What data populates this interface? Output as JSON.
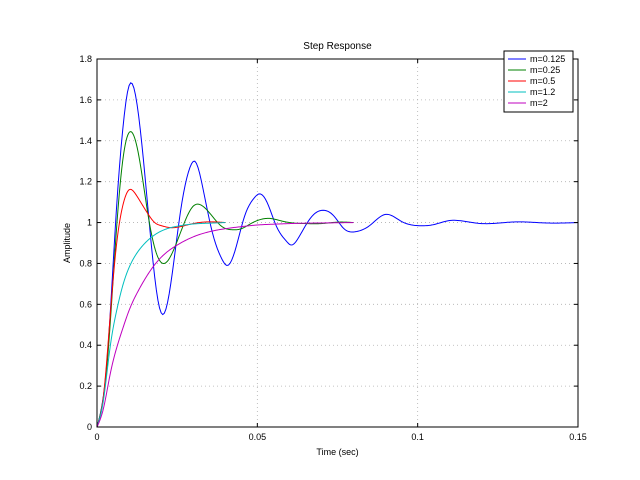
{
  "chart_data": {
    "type": "line",
    "title": "Step Response",
    "xlabel": "Time (sec)",
    "ylabel": "Amplitude",
    "xlim": [
      0,
      0.15
    ],
    "ylim": [
      0,
      1.8
    ],
    "xticks": [
      0,
      0.05,
      0.1,
      0.15
    ],
    "xtick_labels": [
      "0",
      "0.05",
      "0.1",
      "0.15"
    ],
    "yticks": [
      0,
      0.2,
      0.4,
      0.6,
      0.8,
      1,
      1.2,
      1.4,
      1.6,
      1.8
    ],
    "ytick_labels": [
      "0",
      "0.2",
      "0.4",
      "0.6",
      "0.8",
      "1",
      "1.2",
      "1.4",
      "1.6",
      "1.8"
    ],
    "grid": true,
    "legend_position": "top-right",
    "series": [
      {
        "name": "m=0.125",
        "color": "#0000ff",
        "t_end": 0.15,
        "x": [
          0,
          0.003,
          0.006,
          0.008,
          0.01,
          0.013,
          0.016,
          0.019,
          0.0205,
          0.023,
          0.026,
          0.029,
          0.0305,
          0.033,
          0.036,
          0.039,
          0.0405,
          0.043,
          0.046,
          0.049,
          0.0505,
          0.053,
          0.056,
          0.059,
          0.0605,
          0.063,
          0.067,
          0.0705,
          0.074,
          0.077,
          0.0805,
          0.085,
          0.09,
          0.095,
          0.1,
          0.105,
          0.11,
          0.115,
          0.12,
          0.13,
          0.14,
          0.15
        ],
        "y": [
          0,
          0.3,
          1.05,
          1.45,
          1.67,
          1.52,
          1.05,
          0.62,
          0.55,
          0.7,
          1.05,
          1.27,
          1.3,
          1.17,
          0.95,
          0.82,
          0.79,
          0.86,
          1.03,
          1.12,
          1.14,
          1.1,
          0.98,
          0.91,
          0.89,
          0.93,
          1.03,
          1.06,
          1.03,
          0.97,
          0.955,
          0.985,
          1.04,
          1.005,
          0.985,
          0.99,
          1.01,
          1.005,
          0.995,
          1.003,
          0.998,
          1.0
        ]
      },
      {
        "name": "m=0.25",
        "color": "#008000",
        "t_end": 0.08,
        "x": [
          0,
          0.003,
          0.006,
          0.008,
          0.01,
          0.013,
          0.016,
          0.019,
          0.021,
          0.024,
          0.027,
          0.03,
          0.033,
          0.036,
          0.039,
          0.042,
          0.045,
          0.048,
          0.051,
          0.054,
          0.057,
          0.06,
          0.065,
          0.07,
          0.075,
          0.08
        ],
        "y": [
          0,
          0.28,
          0.95,
          1.3,
          1.44,
          1.33,
          1.03,
          0.83,
          0.8,
          0.87,
          0.99,
          1.08,
          1.08,
          1.03,
          0.98,
          0.965,
          0.97,
          0.995,
          1.015,
          1.02,
          1.01,
          1.0,
          0.995,
          0.995,
          1.002,
          1.0
        ]
      },
      {
        "name": "m=0.5",
        "color": "#ff0000",
        "t_end": 0.04,
        "x": [
          0,
          0.002,
          0.004,
          0.006,
          0.008,
          0.01,
          0.012,
          0.014,
          0.016,
          0.018,
          0.02,
          0.023,
          0.026,
          0.03,
          0.034,
          0.037,
          0.04
        ],
        "y": [
          0,
          0.15,
          0.52,
          0.88,
          1.08,
          1.16,
          1.14,
          1.09,
          1.04,
          1.0,
          0.985,
          0.975,
          0.98,
          0.995,
          1.003,
          1.003,
          1.0
        ]
      },
      {
        "name": "m=1.2",
        "color": "#00bfbf",
        "t_end": 0.04,
        "x": [
          0,
          0.002,
          0.004,
          0.006,
          0.008,
          0.01,
          0.012,
          0.015,
          0.018,
          0.021,
          0.025,
          0.03,
          0.035,
          0.04
        ],
        "y": [
          0,
          0.13,
          0.38,
          0.56,
          0.69,
          0.78,
          0.84,
          0.9,
          0.94,
          0.965,
          0.982,
          0.993,
          0.997,
          1.0
        ]
      },
      {
        "name": "m=2",
        "color": "#bf00bf",
        "t_end": 0.08,
        "x": [
          0,
          0.002,
          0.004,
          0.006,
          0.008,
          0.01,
          0.013,
          0.016,
          0.02,
          0.025,
          0.03,
          0.035,
          0.04,
          0.045,
          0.05,
          0.055,
          0.06,
          0.065,
          0.07,
          0.075,
          0.08
        ],
        "y": [
          0,
          0.09,
          0.25,
          0.38,
          0.48,
          0.57,
          0.67,
          0.75,
          0.83,
          0.89,
          0.93,
          0.955,
          0.97,
          0.98,
          0.988,
          0.992,
          0.995,
          0.997,
          0.998,
          0.999,
          1.0
        ]
      }
    ]
  }
}
